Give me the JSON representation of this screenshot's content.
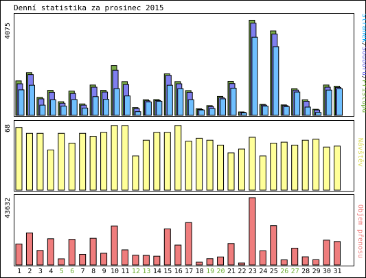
{
  "chart_data": [
    {
      "type": "bar",
      "title": "Denní statistika za prosinec 2015",
      "categories": [
        "1",
        "2",
        "3",
        "4",
        "5",
        "6",
        "7",
        "8",
        "9",
        "10",
        "11",
        "12",
        "13",
        "14",
        "15",
        "16",
        "17",
        "18",
        "19",
        "20",
        "21",
        "22",
        "23",
        "24",
        "25",
        "26",
        "27",
        "28",
        "29",
        "30",
        "31"
      ],
      "weekend_days": [
        "5",
        "6",
        "12",
        "13",
        "19",
        "20",
        "26",
        "27"
      ],
      "ymax_label": "4075",
      "ylim": [
        0,
        4075
      ],
      "legend_label": "Stránek/Souborů/Přístupů",
      "legend_parts": [
        "Stránek",
        "Souborů",
        "Přístupů"
      ],
      "series": [
        {
          "name": "Přístupů",
          "color": "#7bab4a",
          "values": [
            1420,
            1760,
            740,
            1030,
            560,
            1000,
            470,
            1250,
            1030,
            2050,
            1390,
            320,
            640,
            650,
            1710,
            1390,
            1020,
            270,
            400,
            780,
            1400,
            140,
            3920,
            450,
            3480,
            430,
            1100,
            640,
            250,
            1250,
            1200
          ]
        },
        {
          "name": "Souborů",
          "color": "#7f7fef",
          "values": [
            1300,
            1680,
            680,
            950,
            500,
            900,
            420,
            1160,
            960,
            1860,
            1270,
            280,
            600,
            610,
            1650,
            1300,
            950,
            240,
            360,
            730,
            1310,
            120,
            3800,
            420,
            3350,
            400,
            1040,
            580,
            220,
            1160,
            1150
          ]
        },
        {
          "name": "Stránek",
          "color": "#6fbfff",
          "values": [
            1050,
            1240,
            420,
            640,
            380,
            650,
            300,
            770,
            660,
            1100,
            800,
            150,
            550,
            580,
            1240,
            1100,
            640,
            220,
            280,
            680,
            1120,
            100,
            3220,
            380,
            2830,
            360,
            960,
            340,
            120,
            1040,
            1100
          ]
        }
      ]
    },
    {
      "type": "bar",
      "ymax_label": "68",
      "ylim": [
        0,
        68
      ],
      "legend_label": "Návštěv",
      "series": [
        {
          "name": "Návštěv",
          "color": "#ffff99",
          "values": [
            64,
            58,
            58,
            41,
            58,
            48,
            58,
            55,
            59,
            66,
            66,
            35,
            51,
            59,
            59,
            66,
            50,
            53,
            51,
            46,
            38,
            42,
            54,
            35,
            48,
            49,
            46,
            51,
            52,
            44,
            45
          ]
        }
      ]
    },
    {
      "type": "bar",
      "ymax_label": "43632",
      "ylim": [
        0,
        43632
      ],
      "legend_label": "Objem přenosu",
      "series": [
        {
          "name": "Objem přenosu",
          "color": "#ef7d7d",
          "values": [
            13600,
            20800,
            9400,
            17000,
            4000,
            16600,
            6900,
            17300,
            7600,
            25300,
            9800,
            6300,
            6200,
            5700,
            23400,
            12900,
            27500,
            1800,
            4100,
            5200,
            13900,
            1300,
            43632,
            9200,
            25500,
            3300,
            10900,
            5300,
            3400,
            16100,
            15200
          ]
        }
      ]
    }
  ]
}
